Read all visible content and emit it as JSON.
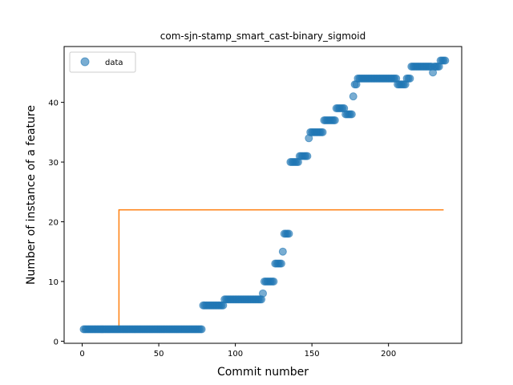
{
  "chart_data": {
    "type": "scatter",
    "title": "com-sjn-stamp_smart_cast-binary_sigmoid",
    "xlabel": "Commit number",
    "ylabel": "Number of instance of a feature",
    "xlim": [
      -11.8,
      247.8
    ],
    "ylim": [
      -0.35,
      49.35
    ],
    "xticks": [
      0,
      50,
      100,
      150,
      200
    ],
    "yticks": [
      0,
      10,
      20,
      30,
      40
    ],
    "grid": false,
    "legend": {
      "position": "upper-left",
      "entries": [
        "data"
      ]
    },
    "colors": {
      "data": "#1f77b4",
      "fit": "#ff7f0e"
    },
    "series": [
      {
        "name": "data",
        "kind": "scatter",
        "segments": [
          {
            "x_from": 1,
            "x_to": 78,
            "y": 2
          },
          {
            "x_from": 79,
            "x_to": 92,
            "y": 6
          },
          {
            "x_from": 93,
            "x_to": 117,
            "y": 7
          },
          {
            "x_from": 118,
            "x_to": 118,
            "y": 8
          },
          {
            "x_from": 119,
            "x_to": 125,
            "y": 10
          },
          {
            "x_from": 126,
            "x_to": 130,
            "y": 13
          },
          {
            "x_from": 131,
            "x_to": 131,
            "y": 15
          },
          {
            "x_from": 132,
            "x_to": 135,
            "y": 18
          },
          {
            "x_from": 136,
            "x_to": 141,
            "y": 30
          },
          {
            "x_from": 142,
            "x_to": 147,
            "y": 31
          },
          {
            "x_from": 148,
            "x_to": 148,
            "y": 34
          },
          {
            "x_from": 149,
            "x_to": 157,
            "y": 35
          },
          {
            "x_from": 158,
            "x_to": 165,
            "y": 37
          },
          {
            "x_from": 166,
            "x_to": 171,
            "y": 39
          },
          {
            "x_from": 172,
            "x_to": 176,
            "y": 38
          },
          {
            "x_from": 177,
            "x_to": 177,
            "y": 41
          },
          {
            "x_from": 178,
            "x_to": 179,
            "y": 43
          },
          {
            "x_from": 180,
            "x_to": 205,
            "y": 44
          },
          {
            "x_from": 206,
            "x_to": 211,
            "y": 43
          },
          {
            "x_from": 212,
            "x_to": 214,
            "y": 44
          },
          {
            "x_from": 215,
            "x_to": 228,
            "y": 46
          },
          {
            "x_from": 229,
            "x_to": 229,
            "y": 45
          },
          {
            "x_from": 230,
            "x_to": 233,
            "y": 46
          },
          {
            "x_from": 234,
            "x_to": 237,
            "y": 47
          }
        ]
      },
      {
        "name": "",
        "kind": "line",
        "x": [
          0,
          24,
          24,
          236
        ],
        "y": [
          2,
          2,
          22,
          22
        ]
      }
    ]
  }
}
